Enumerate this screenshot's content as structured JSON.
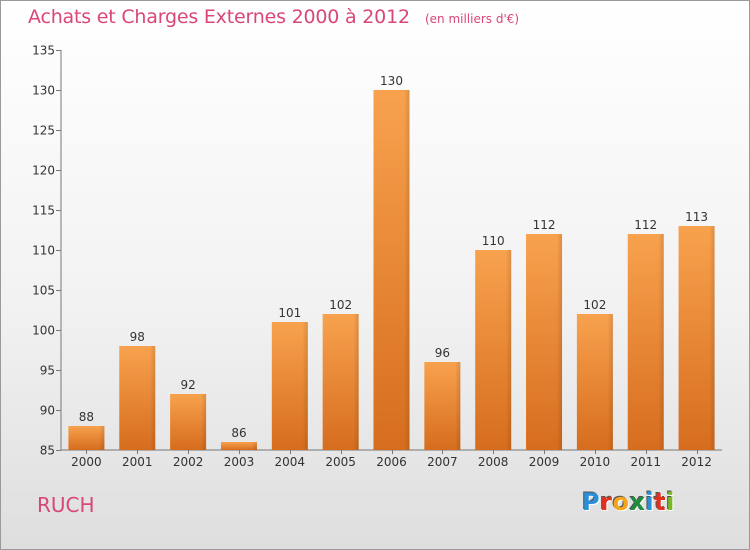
{
  "header": {
    "title": "Achats et Charges Externes 2000 à 2012",
    "unit": "(en milliers d'€)"
  },
  "footer": {
    "commune": "RUCH",
    "logo_text": "Proxiti",
    "logo_colors": [
      "#2a8fd6",
      "#e0301e",
      "#f2a51d",
      "#1e8c3c",
      "#2a8fd6",
      "#e0301e",
      "#7ab829"
    ]
  },
  "colors": {
    "bar_top": "#f8a24e",
    "bar_bottom": "#d66d1e",
    "title": "#d9467a"
  },
  "chart_data": {
    "type": "bar",
    "title": "Achats et Charges Externes 2000 à 2012",
    "xlabel": "",
    "ylabel": "",
    "categories": [
      "2000",
      "2001",
      "2002",
      "2003",
      "2004",
      "2005",
      "2006",
      "2007",
      "2008",
      "2009",
      "2010",
      "2011",
      "2012"
    ],
    "values": [
      88,
      98,
      92,
      86,
      101,
      102,
      130,
      96,
      110,
      112,
      102,
      112,
      113
    ],
    "ylim": [
      85,
      135
    ],
    "yticks": [
      85,
      90,
      95,
      100,
      105,
      110,
      115,
      120,
      125,
      130,
      135
    ],
    "grid": false,
    "legend": "none"
  }
}
